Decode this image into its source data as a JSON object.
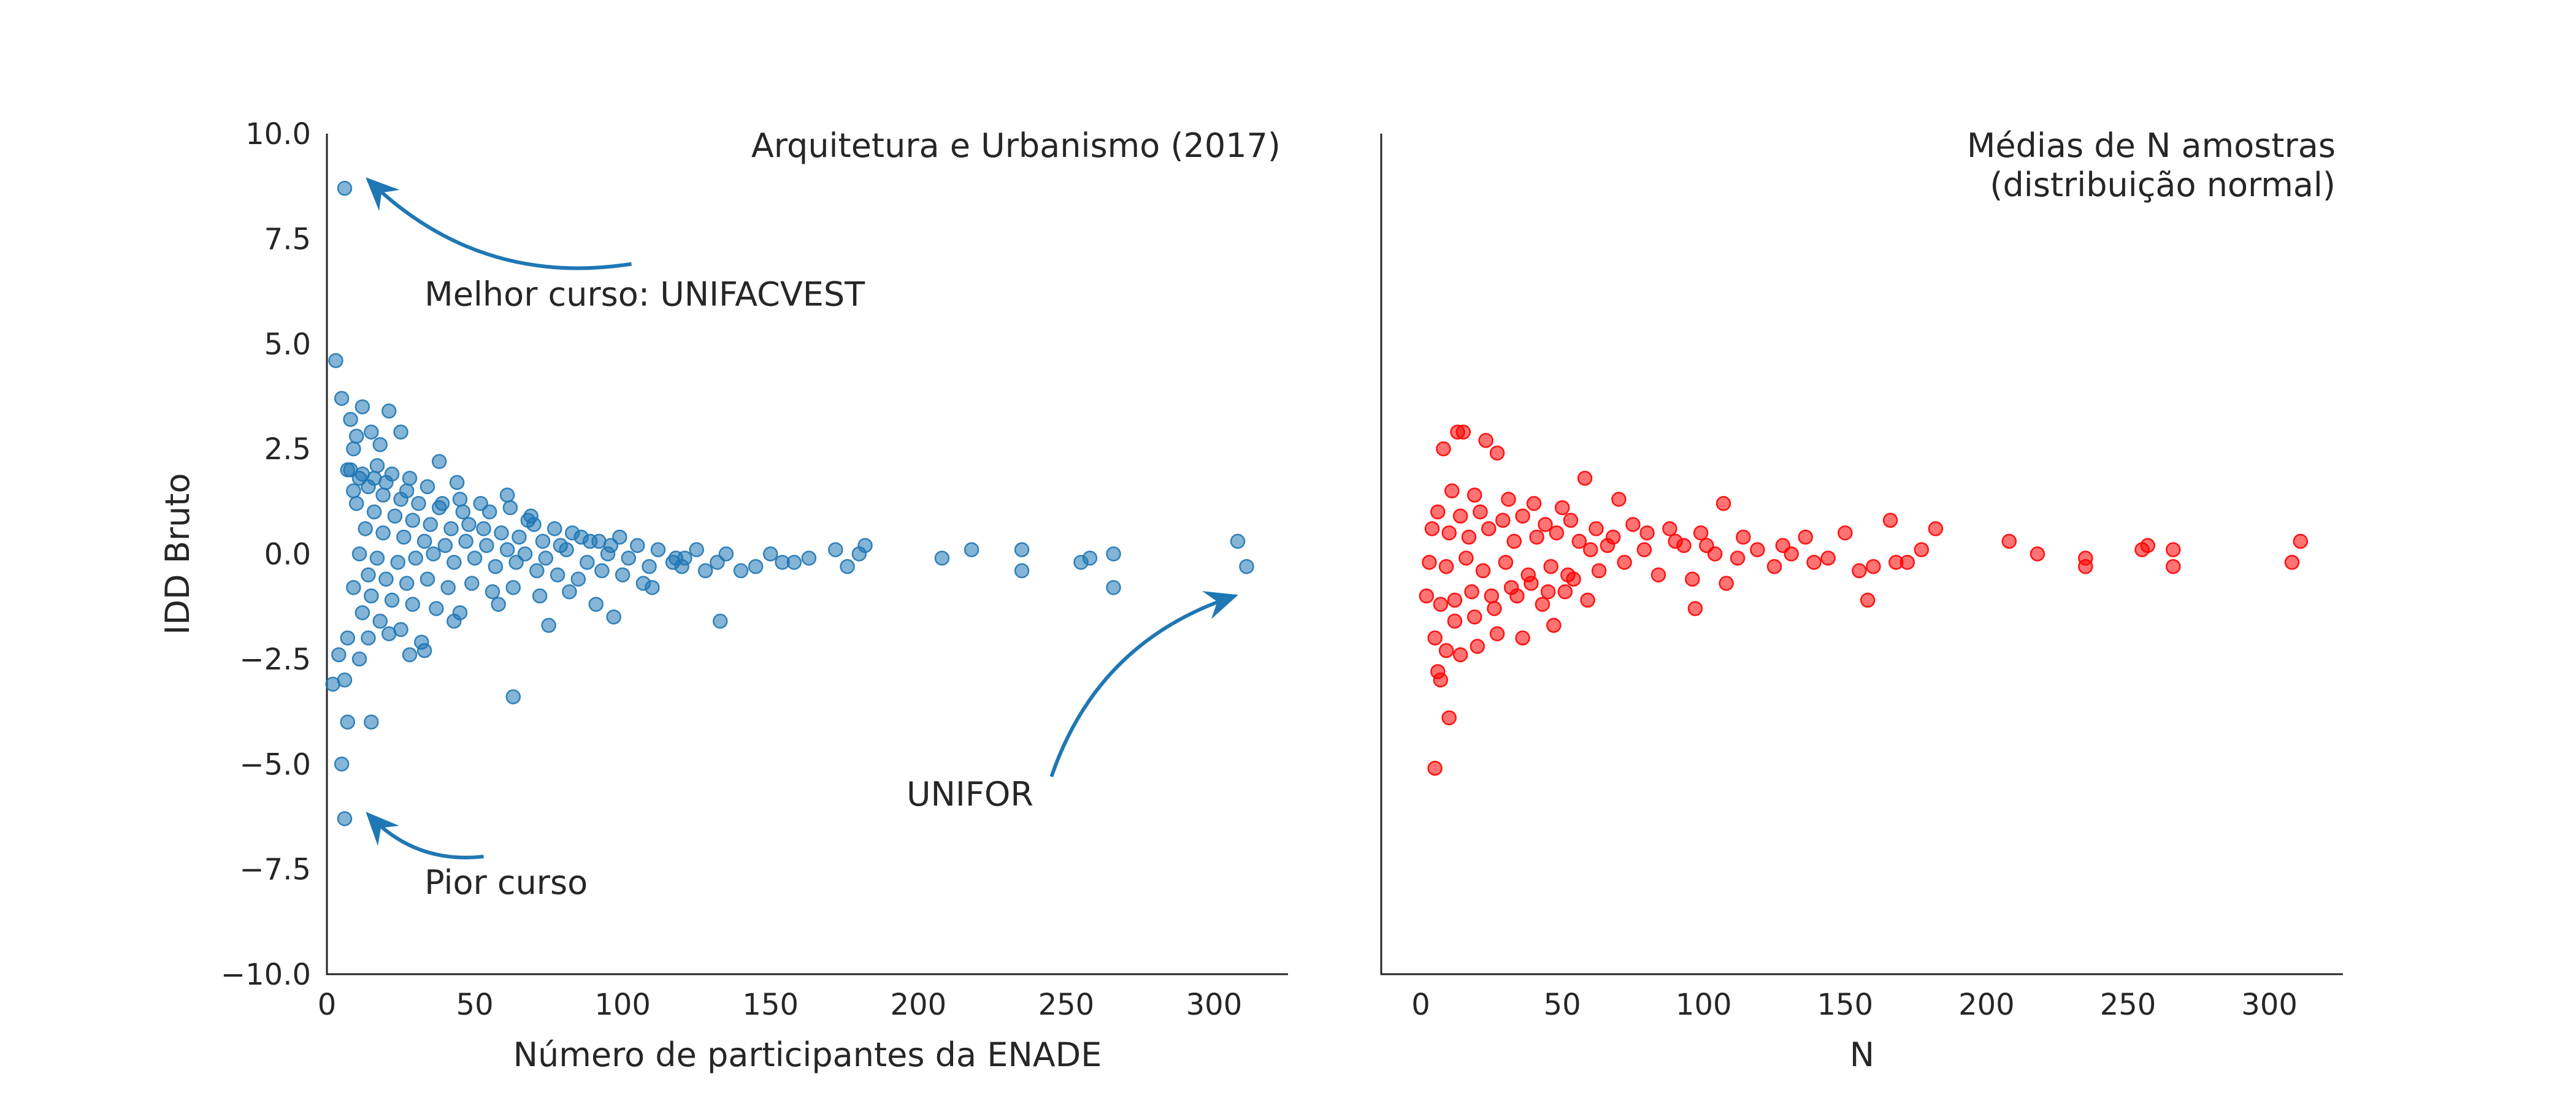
{
  "chart_data": [
    {
      "type": "scatter",
      "title": "Arquitetura e Urbanismo (2017)",
      "xlabel": "Número de participantes da ENADE",
      "ylabel": "IDD Bruto",
      "xlim": [
        0,
        325
      ],
      "ylim": [
        -10,
        10
      ],
      "xticks": [
        "0",
        "50",
        "100",
        "150",
        "200",
        "250",
        "300"
      ],
      "yticks": [
        "10.0",
        "7.5",
        "5.0",
        "2.5",
        "0.0",
        "−2.5",
        "−5.0",
        "−7.5",
        "−10.0"
      ],
      "grid": false,
      "color": "#1f77b4",
      "points": [
        [
          6,
          8.7
        ],
        [
          3,
          4.6
        ],
        [
          5,
          3.7
        ],
        [
          12,
          3.5
        ],
        [
          21,
          3.4
        ],
        [
          8,
          3.2
        ],
        [
          15,
          2.9
        ],
        [
          10,
          2.8
        ],
        [
          25,
          2.9
        ],
        [
          9,
          2.5
        ],
        [
          18,
          2.6
        ],
        [
          38,
          2.2
        ],
        [
          7,
          2.0
        ],
        [
          12,
          1.9
        ],
        [
          16,
          1.8
        ],
        [
          22,
          1.9
        ],
        [
          28,
          1.8
        ],
        [
          34,
          1.6
        ],
        [
          44,
          1.7
        ],
        [
          61,
          1.4
        ],
        [
          9,
          1.5
        ],
        [
          14,
          1.6
        ],
        [
          19,
          1.4
        ],
        [
          25,
          1.3
        ],
        [
          31,
          1.2
        ],
        [
          38,
          1.1
        ],
        [
          46,
          1.0
        ],
        [
          55,
          1.0
        ],
        [
          68,
          0.8
        ],
        [
          70,
          0.7
        ],
        [
          10,
          1.2
        ],
        [
          16,
          1.0
        ],
        [
          23,
          0.9
        ],
        [
          29,
          0.8
        ],
        [
          35,
          0.7
        ],
        [
          42,
          0.6
        ],
        [
          48,
          0.7
        ],
        [
          53,
          0.6
        ],
        [
          59,
          0.5
        ],
        [
          65,
          0.4
        ],
        [
          73,
          0.3
        ],
        [
          79,
          0.2
        ],
        [
          86,
          0.4
        ],
        [
          92,
          0.3
        ],
        [
          99,
          0.4
        ],
        [
          105,
          0.2
        ],
        [
          112,
          0.1
        ],
        [
          121,
          -0.1
        ],
        [
          135,
          0.0
        ],
        [
          150,
          0.0
        ],
        [
          163,
          -0.1
        ],
        [
          172,
          0.1
        ],
        [
          182,
          0.2
        ],
        [
          13,
          0.6
        ],
        [
          19,
          0.5
        ],
        [
          26,
          0.4
        ],
        [
          33,
          0.3
        ],
        [
          40,
          0.2
        ],
        [
          47,
          0.3
        ],
        [
          54,
          0.2
        ],
        [
          61,
          0.1
        ],
        [
          67,
          0.0
        ],
        [
          74,
          -0.1
        ],
        [
          81,
          0.1
        ],
        [
          88,
          -0.2
        ],
        [
          95,
          0.0
        ],
        [
          102,
          -0.1
        ],
        [
          109,
          -0.3
        ],
        [
          117,
          -0.2
        ],
        [
          128,
          -0.4
        ],
        [
          140,
          -0.4
        ],
        [
          158,
          -0.2
        ],
        [
          11,
          0.0
        ],
        [
          17,
          -0.1
        ],
        [
          24,
          -0.2
        ],
        [
          30,
          -0.1
        ],
        [
          36,
          0.0
        ],
        [
          43,
          -0.2
        ],
        [
          50,
          -0.1
        ],
        [
          57,
          -0.3
        ],
        [
          64,
          -0.2
        ],
        [
          71,
          -0.4
        ],
        [
          78,
          -0.5
        ],
        [
          85,
          -0.6
        ],
        [
          93,
          -0.4
        ],
        [
          100,
          -0.5
        ],
        [
          107,
          -0.7
        ],
        [
          120,
          -0.3
        ],
        [
          132,
          -0.2
        ],
        [
          145,
          -0.3
        ],
        [
          14,
          -0.5
        ],
        [
          20,
          -0.6
        ],
        [
          27,
          -0.7
        ],
        [
          34,
          -0.6
        ],
        [
          41,
          -0.8
        ],
        [
          49,
          -0.7
        ],
        [
          56,
          -0.9
        ],
        [
          63,
          -0.8
        ],
        [
          72,
          -1.0
        ],
        [
          82,
          -0.9
        ],
        [
          91,
          -1.2
        ],
        [
          110,
          -0.8
        ],
        [
          9,
          -0.8
        ],
        [
          15,
          -1.0
        ],
        [
          22,
          -1.1
        ],
        [
          29,
          -1.2
        ],
        [
          37,
          -1.3
        ],
        [
          45,
          -1.4
        ],
        [
          58,
          -1.2
        ],
        [
          75,
          -1.7
        ],
        [
          97,
          -1.5
        ],
        [
          133,
          -1.6
        ],
        [
          12,
          -1.4
        ],
        [
          18,
          -1.6
        ],
        [
          25,
          -1.8
        ],
        [
          32,
          -2.1
        ],
        [
          43,
          -1.6
        ],
        [
          7,
          -2.0
        ],
        [
          14,
          -2.0
        ],
        [
          21,
          -1.9
        ],
        [
          28,
          -2.4
        ],
        [
          33,
          -2.3
        ],
        [
          63,
          -3.4
        ],
        [
          4,
          -2.4
        ],
        [
          6,
          -3.0
        ],
        [
          2,
          -3.1
        ],
        [
          11,
          -2.5
        ],
        [
          7,
          -4.0
        ],
        [
          15,
          -4.0
        ],
        [
          5,
          -5.0
        ],
        [
          6,
          -6.3
        ],
        [
          208,
          -0.1
        ],
        [
          218,
          0.1
        ],
        [
          235,
          0.1
        ],
        [
          235,
          -0.4
        ],
        [
          255,
          -0.2
        ],
        [
          258,
          -0.1
        ],
        [
          266,
          0.0
        ],
        [
          266,
          -0.8
        ],
        [
          308,
          0.3
        ],
        [
          311,
          -0.3
        ],
        [
          176,
          -0.3
        ],
        [
          180,
          0.0
        ],
        [
          154,
          -0.2
        ],
        [
          125,
          0.1
        ],
        [
          118,
          -0.1
        ],
        [
          96,
          0.2
        ],
        [
          89,
          0.3
        ],
        [
          83,
          0.5
        ],
        [
          77,
          0.6
        ],
        [
          69,
          0.9
        ],
        [
          62,
          1.1
        ],
        [
          52,
          1.2
        ],
        [
          45,
          1.3
        ],
        [
          39,
          1.2
        ],
        [
          27,
          1.5
        ],
        [
          20,
          1.7
        ],
        [
          8,
          2.0
        ],
        [
          11,
          1.8
        ],
        [
          17,
          2.1
        ]
      ],
      "annotations": [
        {
          "text": "Melhor curso: UNIFACVEST",
          "target": [
            14,
            8.9
          ],
          "text_at": [
            33,
            6.2
          ],
          "arrow_from": [
            103,
            6.9
          ]
        },
        {
          "text": "Pior curso",
          "target": [
            14,
            -6.2
          ],
          "text_at": [
            33,
            -7.8
          ],
          "arrow_from": [
            53,
            -7.2
          ]
        },
        {
          "text": "UNIFOR",
          "target": [
            307,
            -1.0
          ],
          "text_at": [
            196,
            -5.7
          ],
          "arrow_from": [
            245,
            -5.3
          ]
        }
      ]
    },
    {
      "type": "scatter",
      "title": "Médias de N amostras",
      "subtitle": "(distribuição normal)",
      "xlabel": "N",
      "ylabel": "",
      "xlim": [
        -14,
        326
      ],
      "ylim": [
        -10,
        10
      ],
      "xticks": [
        "0",
        "50",
        "100",
        "150",
        "200",
        "250",
        "300"
      ],
      "grid": false,
      "color": "#ff0000",
      "points": [
        [
          13,
          2.9
        ],
        [
          15,
          2.9
        ],
        [
          8,
          2.5
        ],
        [
          27,
          2.4
        ],
        [
          23,
          2.7
        ],
        [
          58,
          1.8
        ],
        [
          11,
          1.5
        ],
        [
          19,
          1.4
        ],
        [
          31,
          1.3
        ],
        [
          40,
          1.2
        ],
        [
          50,
          1.1
        ],
        [
          70,
          1.3
        ],
        [
          107,
          1.2
        ],
        [
          6,
          1.0
        ],
        [
          14,
          0.9
        ],
        [
          21,
          1.0
        ],
        [
          29,
          0.8
        ],
        [
          36,
          0.9
        ],
        [
          44,
          0.7
        ],
        [
          53,
          0.8
        ],
        [
          62,
          0.6
        ],
        [
          75,
          0.7
        ],
        [
          88,
          0.6
        ],
        [
          99,
          0.5
        ],
        [
          114,
          0.4
        ],
        [
          136,
          0.4
        ],
        [
          150,
          0.5
        ],
        [
          166,
          0.8
        ],
        [
          182,
          0.6
        ],
        [
          4,
          0.6
        ],
        [
          10,
          0.5
        ],
        [
          17,
          0.4
        ],
        [
          24,
          0.6
        ],
        [
          33,
          0.3
        ],
        [
          41,
          0.4
        ],
        [
          48,
          0.5
        ],
        [
          56,
          0.3
        ],
        [
          66,
          0.2
        ],
        [
          79,
          0.1
        ],
        [
          93,
          0.2
        ],
        [
          104,
          0.0
        ],
        [
          119,
          0.1
        ],
        [
          131,
          0.0
        ],
        [
          144,
          -0.1
        ],
        [
          160,
          -0.3
        ],
        [
          172,
          -0.2
        ],
        [
          208,
          0.3
        ],
        [
          218,
          0.0
        ],
        [
          235,
          -0.1
        ],
        [
          235,
          -0.3
        ],
        [
          255,
          0.1
        ],
        [
          257,
          0.2
        ],
        [
          266,
          0.1
        ],
        [
          266,
          -0.3
        ],
        [
          308,
          -0.2
        ],
        [
          311,
          0.3
        ],
        [
          3,
          -0.2
        ],
        [
          9,
          -0.3
        ],
        [
          16,
          -0.1
        ],
        [
          22,
          -0.4
        ],
        [
          30,
          -0.2
        ],
        [
          38,
          -0.5
        ],
        [
          46,
          -0.3
        ],
        [
          54,
          -0.6
        ],
        [
          63,
          -0.4
        ],
        [
          72,
          -0.2
        ],
        [
          84,
          -0.5
        ],
        [
          96,
          -0.6
        ],
        [
          108,
          -0.7
        ],
        [
          125,
          -0.3
        ],
        [
          139,
          -0.2
        ],
        [
          155,
          -0.4
        ],
        [
          168,
          -0.2
        ],
        [
          177,
          0.1
        ],
        [
          2,
          -1.0
        ],
        [
          7,
          -1.2
        ],
        [
          12,
          -1.1
        ],
        [
          18,
          -0.9
        ],
        [
          26,
          -1.3
        ],
        [
          34,
          -1.0
        ],
        [
          43,
          -1.2
        ],
        [
          51,
          -0.9
        ],
        [
          59,
          -1.1
        ],
        [
          97,
          -1.3
        ],
        [
          158,
          -1.1
        ],
        [
          5,
          -2.0
        ],
        [
          9,
          -2.3
        ],
        [
          14,
          -2.4
        ],
        [
          20,
          -2.2
        ],
        [
          27,
          -1.9
        ],
        [
          36,
          -2.0
        ],
        [
          47,
          -1.7
        ],
        [
          6,
          -2.8
        ],
        [
          7,
          -3.0
        ],
        [
          10,
          -3.9
        ],
        [
          5,
          -5.1
        ],
        [
          12,
          -1.6
        ],
        [
          19,
          -1.5
        ],
        [
          25,
          -1.0
        ],
        [
          32,
          -0.8
        ],
        [
          39,
          -0.7
        ],
        [
          45,
          -0.9
        ],
        [
          52,
          -0.5
        ],
        [
          60,
          0.1
        ],
        [
          68,
          0.4
        ],
        [
          80,
          0.5
        ],
        [
          90,
          0.3
        ],
        [
          101,
          0.2
        ],
        [
          112,
          -0.1
        ],
        [
          128,
          0.2
        ]
      ]
    }
  ]
}
